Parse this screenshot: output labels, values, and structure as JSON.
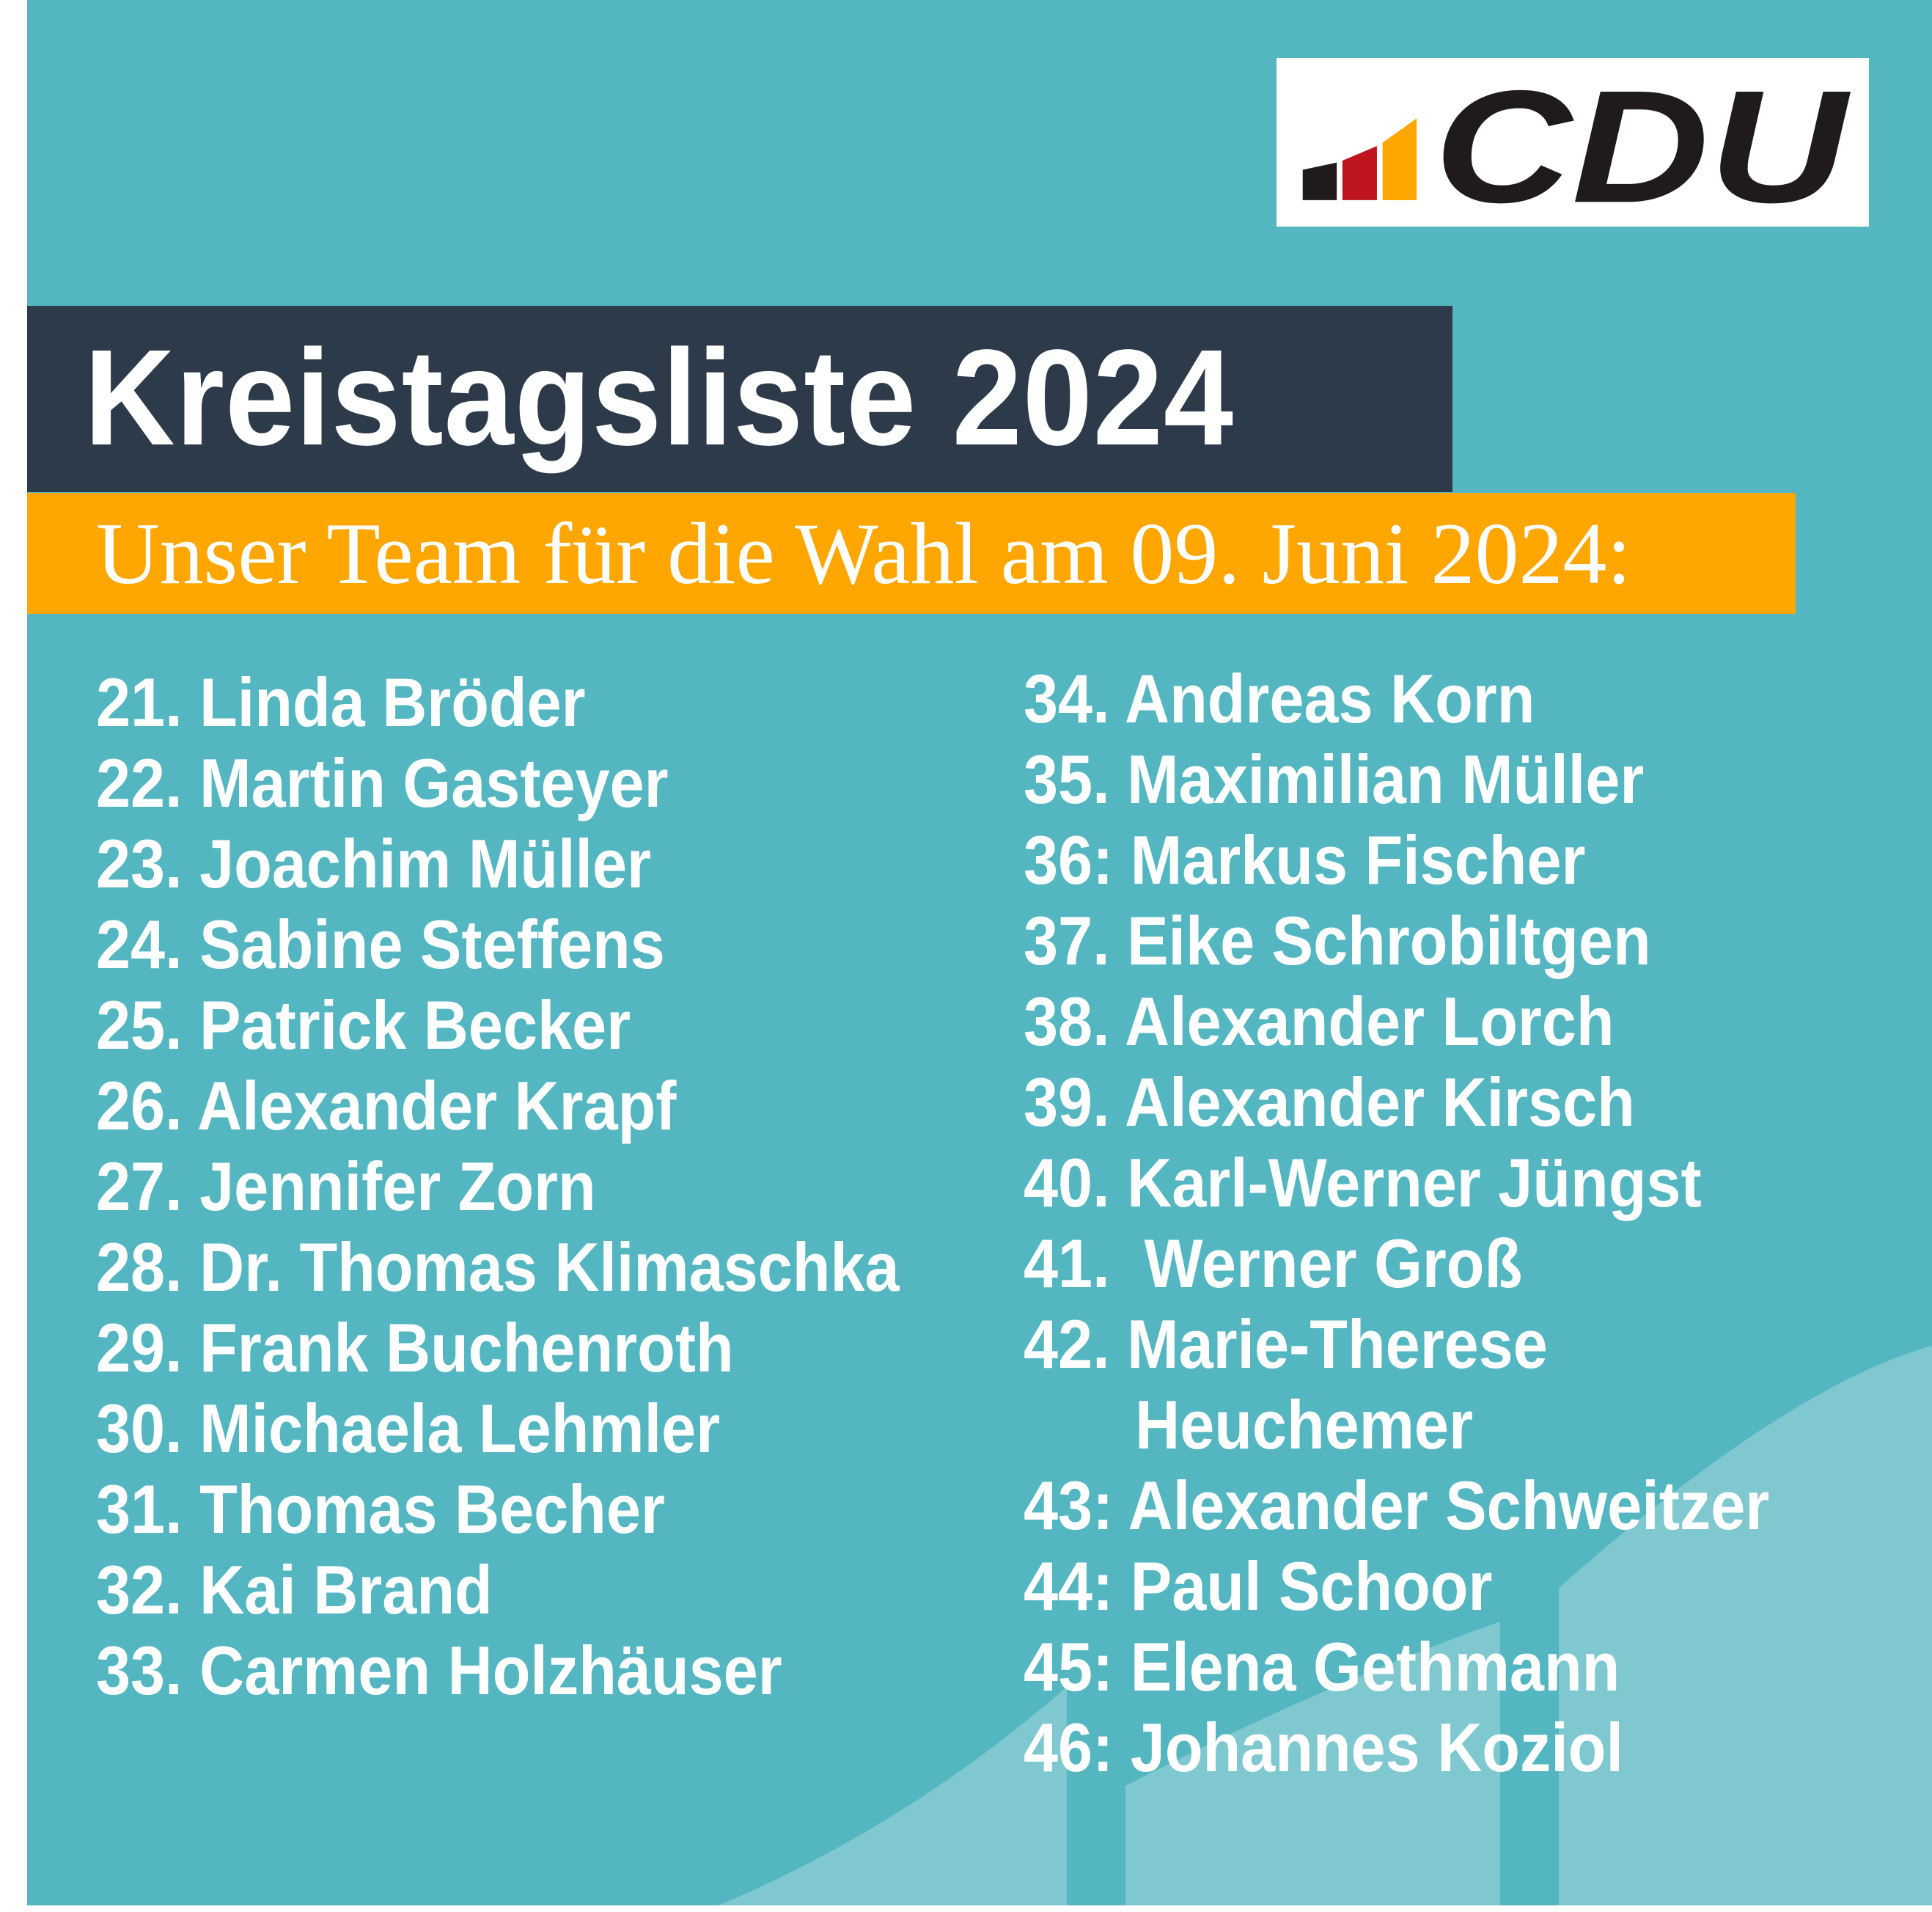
{
  "logo": {
    "text": "CDU",
    "colors": {
      "bar1": "#1f1a1c",
      "bar2": "#be1420",
      "bar3": "#ffa600",
      "text": "#1f1a1c"
    }
  },
  "header": {
    "title": "Kreistagsliste 2024",
    "subtitle": "Unser Team für die Wahl am 09. Juni 2024:"
  },
  "colors": {
    "background": "#53b6c1",
    "title_bar": "#2d3a4a",
    "subtitle_bar": "#ffa600",
    "shape": "#7fc8d0"
  },
  "list_left": [
    "21. Linda Bröder",
    "22. Martin Gasteyer",
    "23. Joachim Müller",
    "24. Sabine Steffens",
    "25. Patrick Becker",
    "26. Alexander Krapf",
    "27. Jennifer Zorn",
    "28. Dr. Thomas Klimaschka",
    "29. Frank Buchenroth",
    "30. Michaela Lehmler",
    "31. Thomas Becher",
    "32. Kai Brand",
    "33. Carmen Holzhäuser"
  ],
  "list_right": [
    {
      "text": "34. Andreas Korn"
    },
    {
      "text": "35. Maximilian Müller"
    },
    {
      "text": "36: Markus Fischer"
    },
    {
      "text": "37. Eike Schrobiltgen"
    },
    {
      "text": "38. Alexander Lorch"
    },
    {
      "text": "39. Alexander Kirsch"
    },
    {
      "text": "40. Karl-Werner Jüngst"
    },
    {
      "text": "41.  Werner Groß"
    },
    {
      "text": "42. Marie-Therese"
    },
    {
      "text": "Heuchemer",
      "continuation": true
    },
    {
      "text": "43: Alexander Schweitzer"
    },
    {
      "text": "44: Paul Schoor"
    },
    {
      "text": "45: Elena Gethmann"
    },
    {
      "text": "46: Johannes Koziol"
    }
  ]
}
